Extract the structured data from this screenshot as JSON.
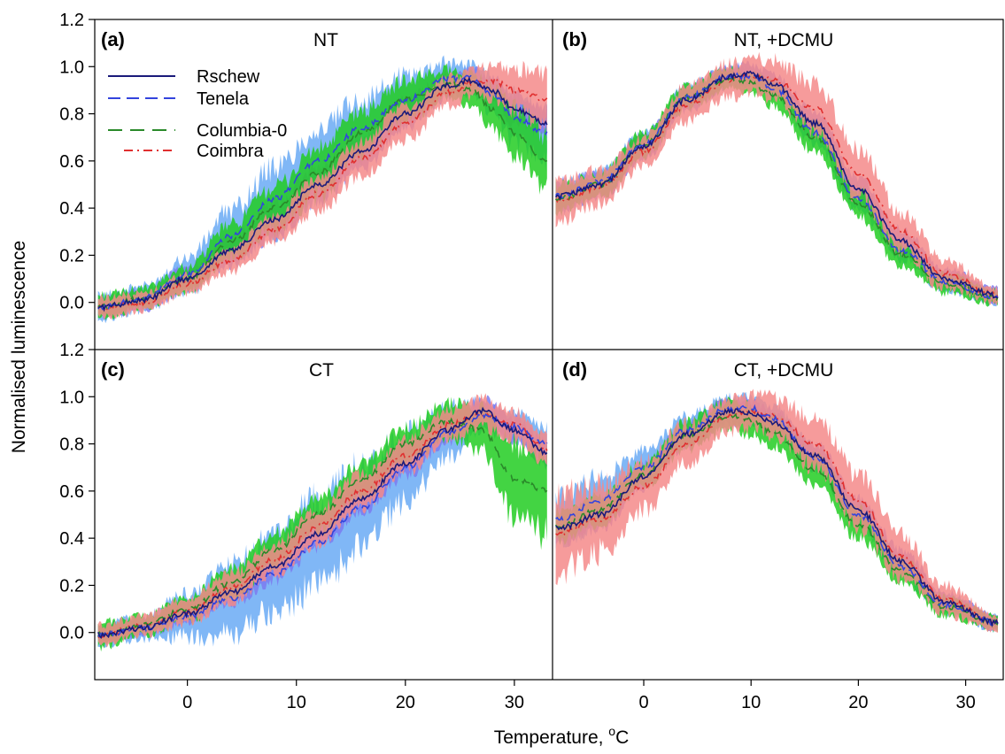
{
  "chart_data": {
    "type": "line",
    "xlabel": "Temperature, ",
    "xlabel_sup": "o",
    "xlabel_unit": "C",
    "ylabel": "Normalised luminescence",
    "xlim": [
      -8.5,
      33.5
    ],
    "ylim": [
      -0.2,
      1.2
    ],
    "x_ticks": [
      0,
      10,
      20,
      30
    ],
    "y_ticks_top": [
      "1.2",
      "1.0",
      "0.8",
      "0.6",
      "0.4",
      "0.2",
      "0.0"
    ],
    "y_ticks_bottom": [
      "1.2",
      "1.0",
      "0.8",
      "0.6",
      "0.4",
      "0.2",
      "0.0"
    ],
    "x_tick_labels": [
      "0",
      "10",
      "20",
      "30"
    ],
    "legend": {
      "placement": "top-left of panel (a)",
      "entries": [
        {
          "label": "Rschew",
          "color": "#1a1a7a",
          "dash": "solid"
        },
        {
          "label": "Tenela",
          "color": "#3344dd",
          "dash": "long-dash"
        },
        {
          "label": "Columbia-0",
          "color": "#2a8a2a",
          "dash": "long-dash"
        },
        {
          "label": "Coimbra",
          "color": "#e03030",
          "dash": "dash-dot"
        }
      ]
    },
    "band_colors": {
      "Rschew": "#7b7bf0",
      "Tenela": "#6aaaf5",
      "Columbia-0": "#22cc22",
      "Coimbra": "#f58a8a"
    },
    "panels": [
      {
        "id": "a",
        "letter": "(a)",
        "title": "NT",
        "series": [
          {
            "name": "Rschew",
            "x": [
              -8,
              -4,
              0,
              4,
              8,
              12,
              16,
              20,
              24,
              26,
              28,
              30,
              33
            ],
            "y": [
              -0.02,
              0.01,
              0.1,
              0.22,
              0.35,
              0.5,
              0.64,
              0.8,
              0.92,
              0.94,
              0.9,
              0.82,
              0.76
            ],
            "band": [
              0.04,
              0.04,
              0.05,
              0.06,
              0.07,
              0.07,
              0.07,
              0.06,
              0.05,
              0.05,
              0.05,
              0.06,
              0.06
            ]
          },
          {
            "name": "Tenela",
            "x": [
              -8,
              -4,
              0,
              4,
              8,
              12,
              16,
              20,
              24,
              26,
              28,
              30,
              33
            ],
            "y": [
              -0.02,
              0.02,
              0.12,
              0.28,
              0.44,
              0.6,
              0.74,
              0.86,
              0.95,
              0.95,
              0.88,
              0.78,
              0.72
            ],
            "band": [
              0.05,
              0.05,
              0.07,
              0.11,
              0.13,
              0.13,
              0.12,
              0.1,
              0.07,
              0.06,
              0.08,
              0.1,
              0.12
            ]
          },
          {
            "name": "Columbia-0",
            "x": [
              -8,
              -4,
              0,
              4,
              8,
              12,
              16,
              20,
              24,
              26,
              28,
              30,
              33
            ],
            "y": [
              -0.02,
              0.02,
              0.1,
              0.26,
              0.4,
              0.55,
              0.72,
              0.86,
              0.93,
              0.9,
              0.82,
              0.72,
              0.6
            ],
            "band": [
              0.05,
              0.04,
              0.05,
              0.07,
              0.09,
              0.1,
              0.09,
              0.08,
              0.06,
              0.07,
              0.09,
              0.1,
              0.11
            ]
          },
          {
            "name": "Coimbra",
            "x": [
              -8,
              -4,
              0,
              4,
              8,
              12,
              16,
              20,
              24,
              26,
              28,
              30,
              33
            ],
            "y": [
              -0.02,
              0.0,
              0.08,
              0.18,
              0.31,
              0.46,
              0.61,
              0.76,
              0.89,
              0.93,
              0.94,
              0.9,
              0.86
            ],
            "band": [
              0.04,
              0.04,
              0.04,
              0.05,
              0.06,
              0.07,
              0.07,
              0.07,
              0.06,
              0.06,
              0.07,
              0.09,
              0.11
            ]
          }
        ]
      },
      {
        "id": "b",
        "letter": "(b)",
        "title": "NT, +DCMU",
        "series": [
          {
            "name": "Rschew",
            "x": [
              -8,
              -4,
              0,
              4,
              8,
              10,
              12,
              16,
              20,
              24,
              28,
              33
            ],
            "y": [
              0.45,
              0.5,
              0.66,
              0.86,
              0.96,
              0.97,
              0.93,
              0.76,
              0.48,
              0.26,
              0.1,
              0.03
            ],
            "band": [
              0.06,
              0.05,
              0.05,
              0.05,
              0.04,
              0.04,
              0.04,
              0.05,
              0.05,
              0.05,
              0.04,
              0.03
            ]
          },
          {
            "name": "Tenela",
            "x": [
              -8,
              -4,
              0,
              4,
              8,
              10,
              12,
              16,
              20,
              24,
              28,
              33
            ],
            "y": [
              0.45,
              0.51,
              0.67,
              0.87,
              0.96,
              0.96,
              0.91,
              0.72,
              0.44,
              0.22,
              0.09,
              0.02
            ],
            "band": [
              0.05,
              0.05,
              0.05,
              0.05,
              0.04,
              0.04,
              0.04,
              0.05,
              0.05,
              0.04,
              0.04,
              0.03
            ]
          },
          {
            "name": "Columbia-0",
            "x": [
              -8,
              -4,
              0,
              4,
              8,
              10,
              12,
              16,
              20,
              24,
              28,
              33
            ],
            "y": [
              0.44,
              0.5,
              0.67,
              0.87,
              0.95,
              0.93,
              0.88,
              0.7,
              0.42,
              0.2,
              0.08,
              0.02
            ],
            "band": [
              0.06,
              0.05,
              0.05,
              0.05,
              0.04,
              0.04,
              0.05,
              0.06,
              0.06,
              0.05,
              0.04,
              0.03
            ]
          },
          {
            "name": "Coimbra",
            "x": [
              -8,
              -4,
              0,
              4,
              8,
              10,
              12,
              16,
              20,
              24,
              28,
              33
            ],
            "y": [
              0.43,
              0.49,
              0.64,
              0.84,
              0.94,
              0.96,
              0.95,
              0.82,
              0.55,
              0.3,
              0.12,
              0.03
            ],
            "band": [
              0.08,
              0.07,
              0.06,
              0.07,
              0.07,
              0.07,
              0.08,
              0.1,
              0.1,
              0.08,
              0.06,
              0.03
            ]
          }
        ]
      },
      {
        "id": "c",
        "letter": "(c)",
        "title": "CT",
        "series": [
          {
            "name": "Rschew",
            "x": [
              -8,
              -4,
              0,
              4,
              8,
              12,
              16,
              20,
              24,
              27,
              30,
              33
            ],
            "y": [
              -0.01,
              0.02,
              0.08,
              0.17,
              0.28,
              0.42,
              0.57,
              0.72,
              0.86,
              0.94,
              0.86,
              0.76
            ],
            "band": [
              0.03,
              0.03,
              0.04,
              0.05,
              0.06,
              0.06,
              0.06,
              0.06,
              0.05,
              0.05,
              0.05,
              0.05
            ]
          },
          {
            "name": "Tenela",
            "x": [
              -8,
              -4,
              0,
              4,
              8,
              12,
              16,
              20,
              24,
              27,
              30,
              33
            ],
            "y": [
              -0.01,
              0.02,
              0.07,
              0.14,
              0.25,
              0.38,
              0.53,
              0.7,
              0.85,
              0.92,
              0.87,
              0.8
            ],
            "band": [
              0.04,
              0.05,
              0.09,
              0.14,
              0.17,
              0.18,
              0.17,
              0.14,
              0.1,
              0.06,
              0.06,
              0.07
            ]
          },
          {
            "name": "Columbia-0",
            "x": [
              -8,
              -4,
              0,
              4,
              8,
              12,
              16,
              20,
              24,
              27,
              30,
              33
            ],
            "y": [
              -0.01,
              0.03,
              0.1,
              0.21,
              0.35,
              0.5,
              0.65,
              0.8,
              0.9,
              0.86,
              0.65,
              0.6
            ],
            "band": [
              0.05,
              0.04,
              0.05,
              0.06,
              0.07,
              0.07,
              0.07,
              0.07,
              0.07,
              0.09,
              0.15,
              0.18
            ]
          },
          {
            "name": "Coimbra",
            "x": [
              -8,
              -4,
              0,
              4,
              8,
              12,
              16,
              20,
              24,
              27,
              30,
              33
            ],
            "y": [
              -0.01,
              0.03,
              0.09,
              0.19,
              0.31,
              0.45,
              0.6,
              0.75,
              0.88,
              0.93,
              0.88,
              0.78
            ],
            "band": [
              0.04,
              0.04,
              0.05,
              0.06,
              0.06,
              0.07,
              0.07,
              0.07,
              0.06,
              0.06,
              0.06,
              0.06
            ]
          }
        ]
      },
      {
        "id": "d",
        "letter": "(d)",
        "title": "CT, +DCMU",
        "series": [
          {
            "name": "Rschew",
            "x": [
              -8,
              -4,
              0,
              4,
              8,
              10,
              12,
              16,
              20,
              24,
              28,
              33
            ],
            "y": [
              0.44,
              0.5,
              0.66,
              0.84,
              0.94,
              0.93,
              0.89,
              0.75,
              0.52,
              0.3,
              0.13,
              0.04
            ],
            "band": [
              0.06,
              0.06,
              0.05,
              0.05,
              0.05,
              0.05,
              0.05,
              0.05,
              0.05,
              0.05,
              0.04,
              0.03
            ]
          },
          {
            "name": "Tenela",
            "x": [
              -8,
              -4,
              0,
              4,
              8,
              10,
              12,
              16,
              20,
              24,
              28,
              33
            ],
            "y": [
              0.48,
              0.56,
              0.7,
              0.86,
              0.95,
              0.95,
              0.91,
              0.74,
              0.5,
              0.28,
              0.12,
              0.04
            ],
            "band": [
              0.1,
              0.1,
              0.07,
              0.06,
              0.05,
              0.05,
              0.05,
              0.05,
              0.05,
              0.05,
              0.04,
              0.03
            ]
          },
          {
            "name": "Columbia-0",
            "x": [
              -8,
              -4,
              0,
              4,
              8,
              10,
              12,
              16,
              20,
              24,
              28,
              33
            ],
            "y": [
              0.45,
              0.52,
              0.67,
              0.84,
              0.92,
              0.9,
              0.85,
              0.69,
              0.46,
              0.26,
              0.11,
              0.04
            ],
            "band": [
              0.06,
              0.06,
              0.05,
              0.06,
              0.06,
              0.06,
              0.06,
              0.06,
              0.06,
              0.05,
              0.04,
              0.03
            ]
          },
          {
            "name": "Coimbra",
            "x": [
              -8,
              -4,
              0,
              4,
              8,
              10,
              12,
              16,
              20,
              24,
              28,
              33
            ],
            "y": [
              0.42,
              0.48,
              0.62,
              0.8,
              0.92,
              0.94,
              0.92,
              0.8,
              0.56,
              0.32,
              0.14,
              0.04
            ],
            "band": [
              0.16,
              0.14,
              0.1,
              0.08,
              0.07,
              0.07,
              0.08,
              0.1,
              0.11,
              0.09,
              0.06,
              0.03
            ]
          }
        ]
      }
    ]
  }
}
